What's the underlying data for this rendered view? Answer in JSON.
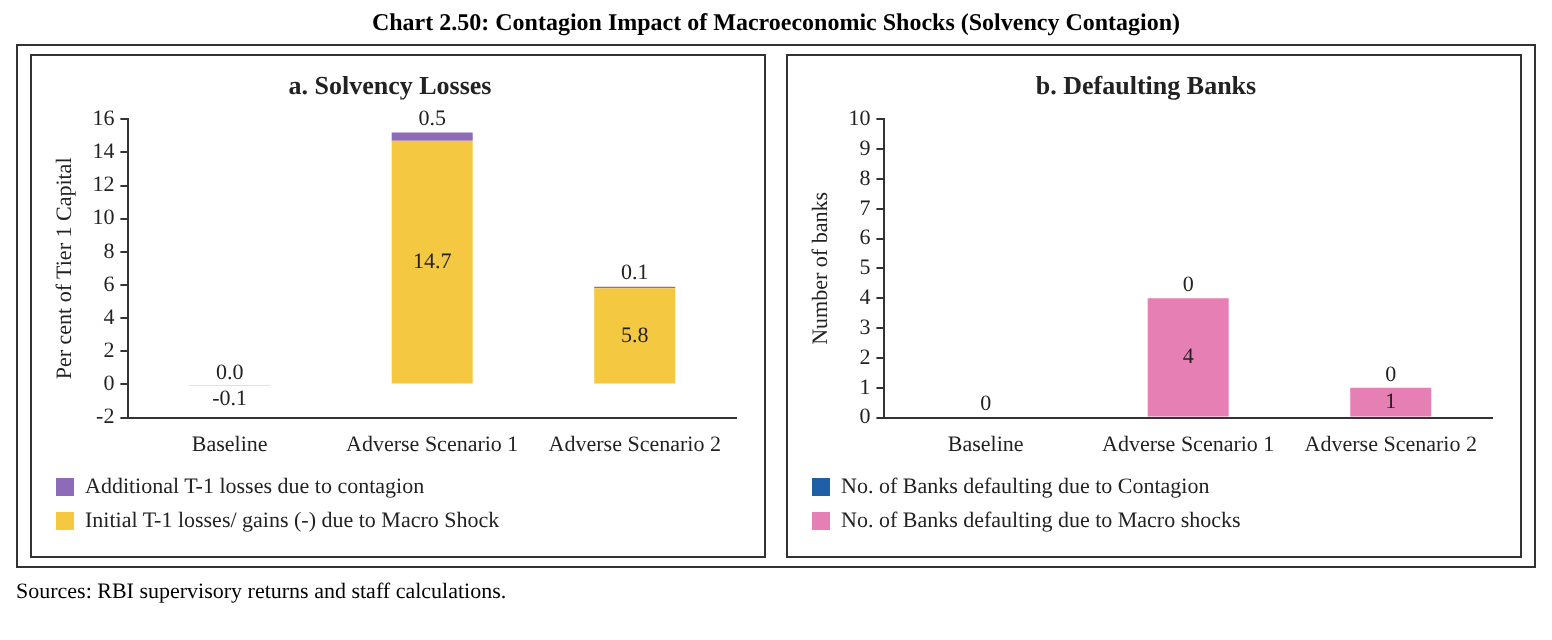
{
  "chart_data": [
    {
      "type": "bar",
      "title": "a. Solvency Losses",
      "ylabel": "Per cent of Tier 1 Capital",
      "stacked": true,
      "annotations": [
        "Chart 2.50: Contagion Impact of Macroeconomic Shocks (Solvency Contagion)",
        "Sources: RBI supervisory returns and staff calculations."
      ],
      "categories": [
        "Baseline",
        "Adverse Scenario 1",
        "Adverse Scenario 2"
      ],
      "series": [
        {
          "name": "Initial T-1 losses/ gains (-) due to Macro Shock",
          "color": "#f5c842",
          "values": [
            -0.1,
            14.7,
            5.8
          ],
          "value_labels": [
            "-0.1",
            "14.7",
            "5.8"
          ]
        },
        {
          "name": "Additional T-1 losses due to contagion",
          "color": "#8e6bb8",
          "values": [
            0,
            0.5,
            0.1
          ],
          "value_labels": [
            "0.0",
            "0.5",
            "0.1"
          ]
        }
      ],
      "ylim": [
        -2,
        16
      ],
      "yticks": [
        -2,
        0,
        2,
        4,
        6,
        8,
        10,
        12,
        14,
        16
      ],
      "grid": false,
      "legend": "bottom"
    },
    {
      "type": "bar",
      "title": "b. Defaulting Banks",
      "ylabel": "Number of banks",
      "stacked": true,
      "categories": [
        "Baseline",
        "Adverse Scenario 1",
        "Adverse Scenario 2"
      ],
      "series": [
        {
          "name": "No. of Banks defaulting due to Macro shocks",
          "color": "#e57fb4",
          "values": [
            0,
            4,
            1
          ],
          "value_labels": [
            "0",
            "4",
            "1"
          ]
        },
        {
          "name": "No. of Banks defaulting due to Contagion",
          "color": "#1f5fa8",
          "values": [
            0,
            0,
            0
          ],
          "value_labels": [
            null,
            "0",
            "0"
          ]
        }
      ],
      "ylim": [
        0,
        10
      ],
      "yticks": [
        0,
        1,
        2,
        3,
        4,
        5,
        6,
        7,
        8,
        9,
        10
      ],
      "grid": false,
      "legend": "bottom"
    }
  ]
}
